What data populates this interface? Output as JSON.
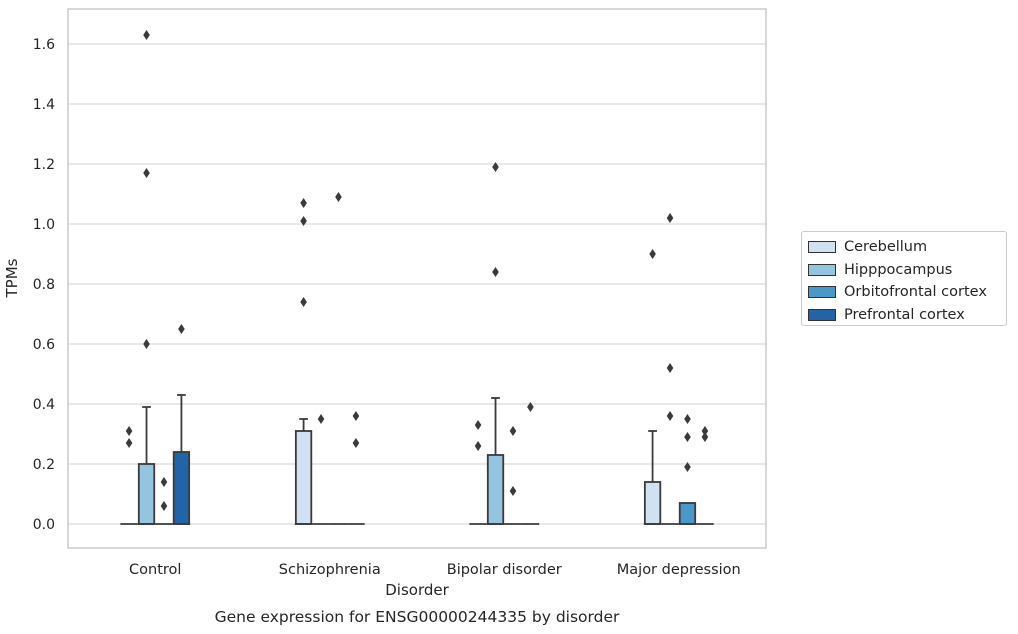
{
  "chart_data": {
    "type": "box",
    "title": "Gene expression for ENSG00000244335 by disorder",
    "xlabel": "Disorder",
    "ylabel": "TPMs",
    "ylim": [
      -0.08,
      1.72
    ],
    "yticks": [
      "0.0",
      "0.2",
      "0.4",
      "0.6",
      "0.8",
      "1.0",
      "1.2",
      "1.4",
      "1.6"
    ],
    "grid": true,
    "legend_position": "right",
    "categories": [
      "Control",
      "Schizophrenia",
      "Bipolar disorder",
      "Major depression"
    ],
    "series": [
      {
        "name": "Cerebellum",
        "color": "#d0e1f2",
        "boxes": [
          {
            "q1": 0,
            "median": 0,
            "q3": 0,
            "whisker_low": 0,
            "whisker_high": 0,
            "outliers": [
              0.27,
              0.31
            ]
          },
          {
            "q1": 0,
            "median": 0,
            "q3": 0.31,
            "whisker_low": 0,
            "whisker_high": 0.35,
            "outliers": [
              0.74,
              1.01,
              1.07
            ]
          },
          {
            "q1": 0,
            "median": 0,
            "q3": 0,
            "whisker_low": 0,
            "whisker_high": 0,
            "outliers": [
              0.26,
              0.33
            ]
          },
          {
            "q1": 0,
            "median": 0,
            "q3": 0.14,
            "whisker_low": 0,
            "whisker_high": 0.31,
            "outliers": [
              0.9
            ]
          }
        ]
      },
      {
        "name": "Hipppocampus",
        "color": "#94c4df",
        "boxes": [
          {
            "q1": 0,
            "median": 0,
            "q3": 0.2,
            "whisker_low": 0,
            "whisker_high": 0.39,
            "outliers": [
              0.6,
              1.17,
              1.63
            ]
          },
          {
            "q1": 0,
            "median": 0,
            "q3": 0,
            "whisker_low": 0,
            "whisker_high": 0,
            "outliers": [
              0.35
            ]
          },
          {
            "q1": 0,
            "median": 0,
            "q3": 0.23,
            "whisker_low": 0,
            "whisker_high": 0.42,
            "outliers": [
              0.84,
              1.19
            ]
          },
          {
            "q1": 0,
            "median": 0,
            "q3": 0,
            "whisker_low": 0,
            "whisker_high": 0,
            "outliers": [
              0.36,
              0.52,
              1.02
            ]
          }
        ]
      },
      {
        "name": "Orbitofrontal cortex",
        "color": "#4a98c9",
        "boxes": [
          {
            "q1": 0,
            "median": 0,
            "q3": 0,
            "whisker_low": 0,
            "whisker_high": 0,
            "outliers": [
              0.06,
              0.14
            ]
          },
          {
            "q1": 0,
            "median": 0,
            "q3": 0,
            "whisker_low": 0,
            "whisker_high": 0,
            "outliers": [
              1.09
            ]
          },
          {
            "q1": 0,
            "median": 0,
            "q3": 0,
            "whisker_low": 0,
            "whisker_high": 0,
            "outliers": [
              0.11,
              0.31
            ]
          },
          {
            "q1": 0,
            "median": 0,
            "q3": 0.07,
            "whisker_low": 0,
            "whisker_high": 0.07,
            "outliers": [
              0.19,
              0.29,
              0.35
            ]
          }
        ]
      },
      {
        "name": "Prefrontal cortex",
        "color": "#2264a8",
        "boxes": [
          {
            "q1": 0,
            "median": 0,
            "q3": 0.24,
            "whisker_low": 0,
            "whisker_high": 0.43,
            "outliers": [
              0.65
            ]
          },
          {
            "q1": 0,
            "median": 0,
            "q3": 0,
            "whisker_low": 0,
            "whisker_high": 0,
            "outliers": [
              0.27,
              0.36
            ]
          },
          {
            "q1": 0,
            "median": 0,
            "q3": 0,
            "whisker_low": 0,
            "whisker_high": 0,
            "outliers": [
              0.39
            ]
          },
          {
            "q1": 0,
            "median": 0,
            "q3": 0,
            "whisker_low": 0,
            "whisker_high": 0,
            "outliers": [
              0.29,
              0.31
            ]
          }
        ]
      }
    ]
  }
}
